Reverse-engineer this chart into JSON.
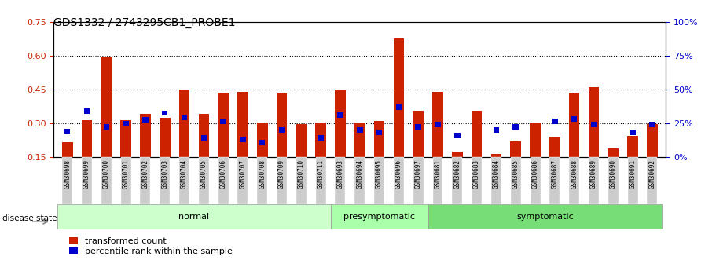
{
  "title": "GDS1332 / 2743295CB1_PROBE1",
  "samples": [
    "GSM30698",
    "GSM30699",
    "GSM30700",
    "GSM30701",
    "GSM30702",
    "GSM30703",
    "GSM30704",
    "GSM30705",
    "GSM30706",
    "GSM30707",
    "GSM30708",
    "GSM30709",
    "GSM30710",
    "GSM30711",
    "GSM30693",
    "GSM30694",
    "GSM30695",
    "GSM30696",
    "GSM30697",
    "GSM30681",
    "GSM30682",
    "GSM30683",
    "GSM30684",
    "GSM30685",
    "GSM30686",
    "GSM30687",
    "GSM30688",
    "GSM30689",
    "GSM30690",
    "GSM30691",
    "GSM30692"
  ],
  "transformed_count": [
    0.215,
    0.315,
    0.595,
    0.315,
    0.34,
    0.325,
    0.45,
    0.34,
    0.435,
    0.44,
    0.305,
    0.435,
    0.295,
    0.305,
    0.45,
    0.305,
    0.31,
    0.675,
    0.355,
    0.44,
    0.175,
    0.355,
    0.165,
    0.22,
    0.305,
    0.24,
    0.435,
    0.46,
    0.19,
    0.245,
    0.295
  ],
  "percentile": [
    0.265,
    0.355,
    0.285,
    0.3,
    0.315,
    0.345,
    0.325,
    0.235,
    0.31,
    0.23,
    0.215,
    0.27,
    null,
    0.235,
    0.335,
    0.27,
    0.26,
    0.37,
    0.285,
    0.295,
    0.245,
    null,
    0.27,
    0.285,
    null,
    0.31,
    0.32,
    0.295,
    null,
    0.26,
    0.295
  ],
  "groups": [
    {
      "label": "normal",
      "start": 0,
      "end": 13,
      "color": "#ccffcc"
    },
    {
      "label": "presymptomatic",
      "start": 14,
      "end": 18,
      "color": "#aaffaa"
    },
    {
      "label": "symptomatic",
      "start": 19,
      "end": 30,
      "color": "#77dd77"
    }
  ],
  "ylim_left": [
    0.15,
    0.75
  ],
  "ylim_right": [
    0,
    100
  ],
  "yticks_left": [
    0.15,
    0.3,
    0.45,
    0.6,
    0.75
  ],
  "yticks_right": [
    0,
    25,
    50,
    75,
    100
  ],
  "bar_color": "#cc2200",
  "percentile_color": "#0000cc",
  "bar_width": 0.55,
  "legend_items": [
    "transformed count",
    "percentile rank within the sample"
  ],
  "disease_state_label": "disease state"
}
